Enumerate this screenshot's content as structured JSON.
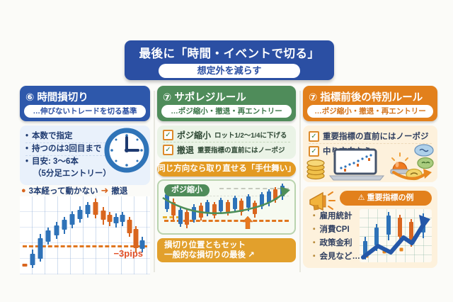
{
  "banner": {
    "title": "最後に「時間・イベントで切る」",
    "subtitle": "想定外を減らす"
  },
  "icons": {
    "check": "✓",
    "warning": "⚠",
    "arrow_right": "➜",
    "arrow_upright": "↗",
    "bullet_dot": "●",
    "small_dot": "・",
    "list_bullet": "•"
  },
  "palette": {
    "page_bg": "#fbfbf8",
    "banner_blue": "#2b4fa3",
    "header_blue": "#2e58ab",
    "header_green": "#4f8c5a",
    "header_orange": "#e2801c",
    "pill_orange": "#e39a22",
    "caption_orange": "#e2a02c",
    "card_blue": "#e9f1fb",
    "card_green": "#eaf3e6",
    "card_cream": "#fdf1dc",
    "chart_green_bg": "#f6faf1",
    "chart_green_border": "#b9d3ae",
    "candle_up": "#2e72b8",
    "candle_down": "#d9661f",
    "dash_orange": "#e0761f",
    "dash_yellow": "#e6b02f",
    "navy": "#1e3a70",
    "green_text": "#3a7547",
    "orange_text": "#d4731a",
    "right_text": "#2f3e5f",
    "pips_red": "#e14e26",
    "check_green": "#3b7d3f",
    "checkbox_border": "#dd8a2b",
    "arrow_blue": "#2457a8"
  },
  "columns": {
    "time": {
      "number": "⑥",
      "title": "時間損切り",
      "subtitle": "…伸びないトレードを切る基準",
      "bullets": [
        "本数で指定",
        "持つのは3回目まで",
        "目安: 3〜6本",
        "（5分足エントリー）"
      ],
      "note": {
        "text": "3本経って動かない",
        "result": "撤退"
      },
      "chart_label": "−3pips"
    },
    "saporeji": {
      "number": "⑦",
      "title": "サポレジルール",
      "subtitle": "…ポジ縮小・撤退・再エントリー",
      "checks": [
        {
          "label": "ポジ縮小",
          "detail": "ロット1/2〜1/4に下げる"
        },
        {
          "label": "撤退",
          "detail": "重要指標の直前にはノーポジ"
        }
      ],
      "pill": "同じ方向なら取り直せる「手仕舞い」",
      "chart_tag": "ポジ縮小",
      "caption": {
        "line1": "損切り位置ともセット",
        "line2": "一般的な損切りの最後"
      }
    },
    "event": {
      "number": "⑦",
      "title": "指標前後の特別ルール",
      "subtitle": "…ポジ縮小・撤退・再エントリー",
      "checks": [
        "重要指標の直前にはノーポジ",
        "中り方向なら"
      ],
      "examples": {
        "title": "重要指標の例",
        "items": [
          "雇用統計",
          "消費CPI",
          "政策金利",
          "会見など…"
        ]
      }
    }
  },
  "charts": {
    "left": {
      "candles": [
        {
          "x": 4,
          "c": "dn",
          "wt": 86,
          "wb": 90,
          "bt": 86,
          "bb": 90
        },
        {
          "x": 10,
          "c": "up",
          "wt": 68,
          "wb": 92,
          "bt": 74,
          "bb": 88
        },
        {
          "x": 16,
          "c": "up",
          "wt": 48,
          "wb": 84,
          "bt": 54,
          "bb": 80
        },
        {
          "x": 22,
          "c": "up",
          "wt": 40,
          "wb": 62,
          "bt": 44,
          "bb": 58
        },
        {
          "x": 28,
          "c": "up",
          "wt": 33,
          "wb": 55,
          "bt": 37,
          "bb": 50
        },
        {
          "x": 34,
          "c": "up",
          "wt": 26,
          "wb": 48,
          "bt": 30,
          "bb": 43
        },
        {
          "x": 40,
          "c": "up",
          "wt": 19,
          "wb": 41,
          "bt": 23,
          "bb": 36
        },
        {
          "x": 46,
          "c": "up",
          "wt": 13,
          "wb": 34,
          "bt": 17,
          "bb": 29
        },
        {
          "x": 52,
          "c": "up",
          "wt": 7,
          "wb": 27,
          "bt": 11,
          "bb": 23
        },
        {
          "x": 58,
          "c": "dn",
          "wt": 3,
          "wb": 28,
          "bt": 7,
          "bb": 24
        },
        {
          "x": 64,
          "c": "dn",
          "wt": 14,
          "wb": 36,
          "bt": 18,
          "bb": 30
        },
        {
          "x": 69,
          "c": "dn",
          "wt": 20,
          "wb": 38,
          "bt": 24,
          "bb": 33
        },
        {
          "x": 74,
          "c": "up",
          "wt": 22,
          "wb": 40,
          "bt": 26,
          "bb": 35
        },
        {
          "x": 79,
          "c": "up",
          "wt": 20,
          "wb": 38,
          "bt": 24,
          "bb": 33
        },
        {
          "x": 84,
          "c": "dn",
          "wt": 26,
          "wb": 52,
          "bt": 30,
          "bb": 47
        },
        {
          "x": 89,
          "c": "dn",
          "wt": 38,
          "wb": 72,
          "bt": 42,
          "bb": 66
        },
        {
          "x": 94,
          "c": "up",
          "wt": 52,
          "wb": 72,
          "bt": 56,
          "bb": 67
        }
      ]
    },
    "mid": {
      "candles": [
        {
          "x": 6,
          "c": "up",
          "wt": 20,
          "wb": 60,
          "bt": 26,
          "bb": 54
        },
        {
          "x": 11,
          "c": "dn",
          "wt": 34,
          "wb": 74,
          "bt": 40,
          "bb": 66
        },
        {
          "x": 16,
          "c": "up",
          "wt": 50,
          "wb": 88,
          "bt": 56,
          "bb": 82
        },
        {
          "x": 21,
          "c": "dn",
          "wt": 55,
          "wb": 90,
          "bt": 60,
          "bb": 84
        },
        {
          "x": 26,
          "c": "up",
          "wt": 45,
          "wb": 80,
          "bt": 50,
          "bb": 74
        },
        {
          "x": 31,
          "c": "dn",
          "wt": 42,
          "wb": 76,
          "bt": 47,
          "bb": 70
        },
        {
          "x": 36,
          "c": "up",
          "wt": 36,
          "wb": 68,
          "bt": 40,
          "bb": 62
        },
        {
          "x": 41,
          "c": "dn",
          "wt": 40,
          "wb": 72,
          "bt": 45,
          "bb": 66
        },
        {
          "x": 46,
          "c": "up",
          "wt": 33,
          "wb": 64,
          "bt": 37,
          "bb": 58
        },
        {
          "x": 51,
          "c": "dn",
          "wt": 36,
          "wb": 66,
          "bt": 40,
          "bb": 60
        },
        {
          "x": 56,
          "c": "up",
          "wt": 28,
          "wb": 60,
          "bt": 32,
          "bb": 54
        },
        {
          "x": 61,
          "c": "dn",
          "wt": 34,
          "wb": 66,
          "bt": 38,
          "bb": 60
        },
        {
          "x": 66,
          "c": "up",
          "wt": 26,
          "wb": 58,
          "bt": 30,
          "bb": 52
        },
        {
          "x": 71,
          "c": "dn",
          "wt": 38,
          "wb": 70,
          "bt": 42,
          "bb": 64
        },
        {
          "x": 76,
          "c": "up",
          "wt": 22,
          "wb": 54,
          "bt": 26,
          "bb": 48
        },
        {
          "x": 81,
          "c": "up",
          "wt": 16,
          "wb": 48,
          "bt": 20,
          "bb": 42
        },
        {
          "x": 86,
          "c": "dn",
          "wt": 12,
          "wb": 42,
          "bt": 16,
          "bb": 36
        },
        {
          "x": 91,
          "c": "up",
          "wt": 6,
          "wb": 36,
          "bt": 10,
          "bb": 30
        }
      ]
    },
    "right": {
      "candles": [
        {
          "x": 8,
          "c": "up",
          "wt": 52,
          "wb": 95,
          "bt": 60,
          "bb": 88
        },
        {
          "x": 24,
          "c": "up",
          "wt": 28,
          "wb": 78,
          "bt": 34,
          "bb": 68
        },
        {
          "x": 40,
          "c": "up",
          "wt": 5,
          "wb": 58,
          "bt": 12,
          "bb": 48
        },
        {
          "x": 56,
          "c": "dn",
          "wt": 10,
          "wb": 62,
          "bt": 16,
          "bb": 52
        },
        {
          "x": 72,
          "c": "dn",
          "wt": 18,
          "wb": 70,
          "bt": 24,
          "bb": 60
        },
        {
          "x": 88,
          "c": "up",
          "wt": 8,
          "wb": 55,
          "bt": 14,
          "bb": 44
        }
      ],
      "markers": [
        {
          "x": 10,
          "y": 88
        },
        {
          "x": 34,
          "y": 80
        },
        {
          "x": 58,
          "y": 76
        }
      ]
    }
  }
}
